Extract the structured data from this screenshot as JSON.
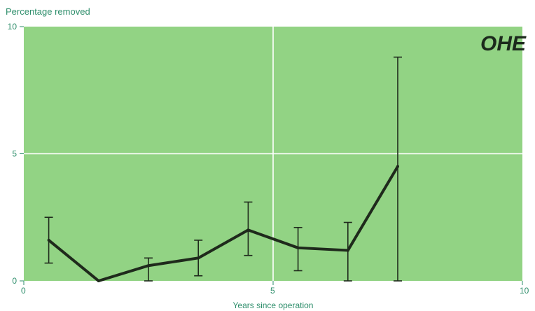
{
  "logo": "OHE",
  "chart_data": {
    "type": "line",
    "ylabel": "Percentage removed",
    "xlabel": "Years since operation",
    "xlim": [
      0,
      10
    ],
    "ylim": [
      0,
      10
    ],
    "x_ticks": [
      "0",
      "5",
      "10"
    ],
    "y_ticks": [
      "0",
      "5",
      "10"
    ],
    "grid": true,
    "series": [
      {
        "x": [
          0.5,
          1.5,
          2.5,
          3.5,
          4.5,
          5.5,
          6.5,
          7.5
        ],
        "values": [
          1.6,
          0.0,
          0.6,
          0.9,
          2.0,
          1.3,
          1.2,
          4.5
        ],
        "err_low": [
          0.7,
          0.0,
          0.0,
          0.2,
          1.0,
          0.4,
          0.0,
          0.0
        ],
        "err_high": [
          2.5,
          0.0,
          0.9,
          1.6,
          3.1,
          2.1,
          2.3,
          8.8
        ]
      }
    ]
  },
  "colors": {
    "plot_background": "#92d384",
    "grid": "#ffffff",
    "line": "#1f2a1c",
    "text": "#2e8e6b"
  }
}
